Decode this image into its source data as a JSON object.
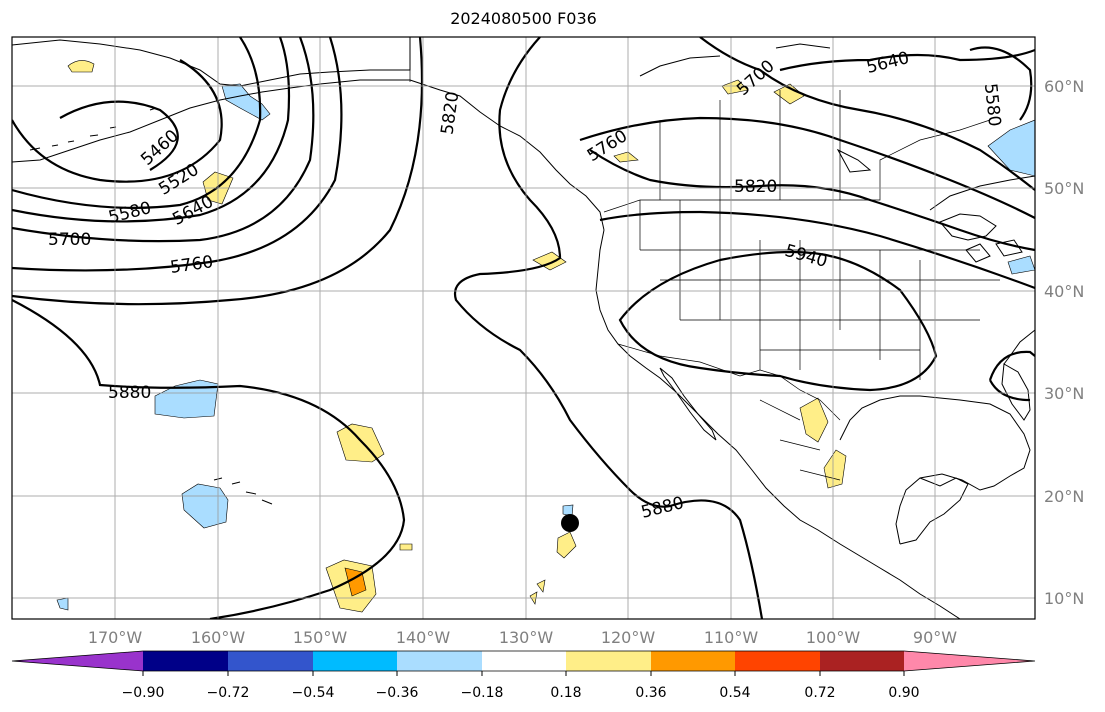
{
  "title": "2024080500 F036",
  "map": {
    "type": "500hPa geopotential height contours with shaded anomaly field",
    "lon_range": [
      -180,
      -80
    ],
    "lat_range": [
      8,
      65
    ],
    "lon_ticks": [
      "170°W",
      "160°W",
      "150°W",
      "140°W",
      "130°W",
      "120°W",
      "110°W",
      "100°W",
      "90°W"
    ],
    "lat_ticks": [
      "60°N",
      "50°N",
      "40°N",
      "30°N",
      "20°N",
      "10°N"
    ],
    "grid": true,
    "contour_labels": [
      "5460",
      "5520",
      "5580",
      "5640",
      "5700",
      "5760",
      "5820",
      "5880",
      "5940",
      "5700",
      "5640",
      "5580",
      "5760",
      "5820",
      "5880"
    ],
    "marker": {
      "lon": -125.8,
      "lat": 17.3,
      "color": "#000000"
    }
  },
  "colorbar": {
    "tick_labels": [
      "−0.90",
      "−0.72",
      "−0.54",
      "−0.36",
      "−0.18",
      "0.18",
      "0.36",
      "0.54",
      "0.72",
      "0.90"
    ],
    "colors": [
      "#9933cc",
      "#000088",
      "#3355cc",
      "#00bbff",
      "#aaddff",
      "#ffffff",
      "#ffee88",
      "#ff9900",
      "#ff4400",
      "#aa2222",
      "#ff88aa"
    ]
  },
  "colors": {
    "land_outline": "#000000",
    "grid": "#999999",
    "positive_weak": "#ffee88",
    "positive_mid": "#ff9900",
    "negative_weak": "#aaddff"
  }
}
